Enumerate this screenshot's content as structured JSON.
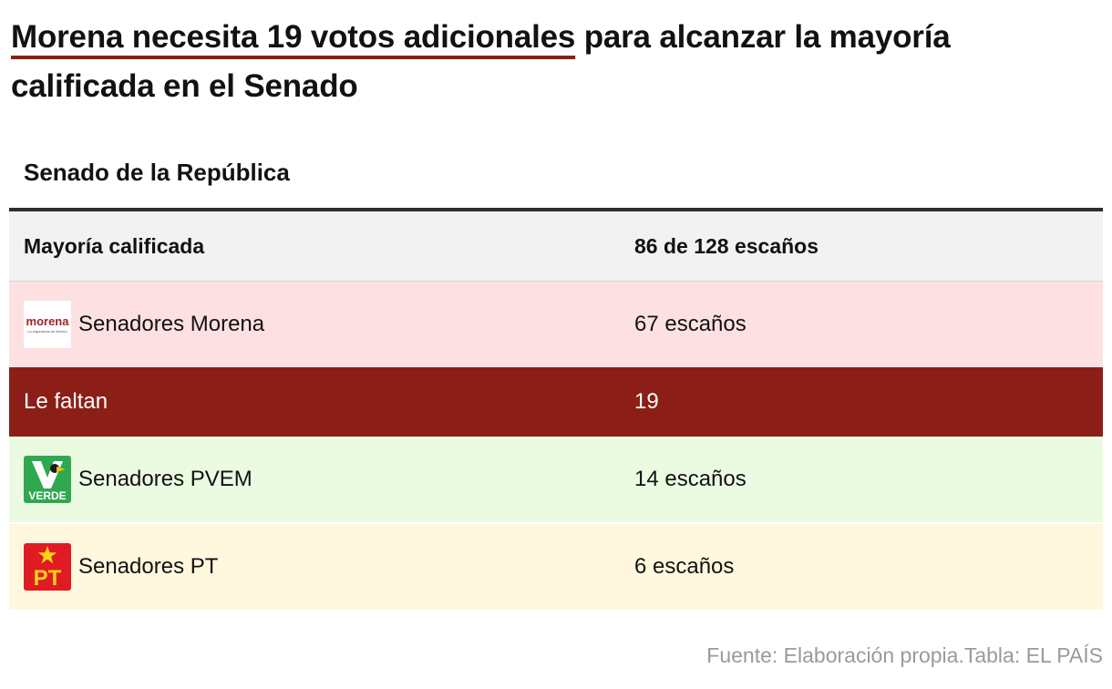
{
  "header": {
    "title_highlight": "Morena necesita 19 votos adicionales",
    "title_rest": " para alcanzar la mayoría calificada en el Senado",
    "subtitle": "Senado de la República"
  },
  "chart_data": {
    "type": "table",
    "columns": [
      "Mayoría calificada",
      "86 de 128 escaños"
    ],
    "rows": [
      {
        "label": "Senadores Morena",
        "value": "67 escaños",
        "logo": "morena-logo",
        "color": "#fde1e2"
      },
      {
        "label": "Le faltan",
        "value": "19",
        "color": "#8b1f18"
      },
      {
        "label": "Senadores PVEM",
        "value": "14 escaños",
        "logo": "pvem-logo",
        "color": "#ebfbe2"
      },
      {
        "label": "Senadores PT",
        "value": "6 escaños",
        "logo": "pt-logo",
        "color": "#fff8df"
      }
    ]
  },
  "logos": {
    "morena": "morena",
    "morena_tagline": "La esperanza de México",
    "pvem": "VERDE",
    "pt": "PT"
  },
  "footer": {
    "source": "Fuente: Elaboración propia.Tabla: EL PAÍS"
  }
}
